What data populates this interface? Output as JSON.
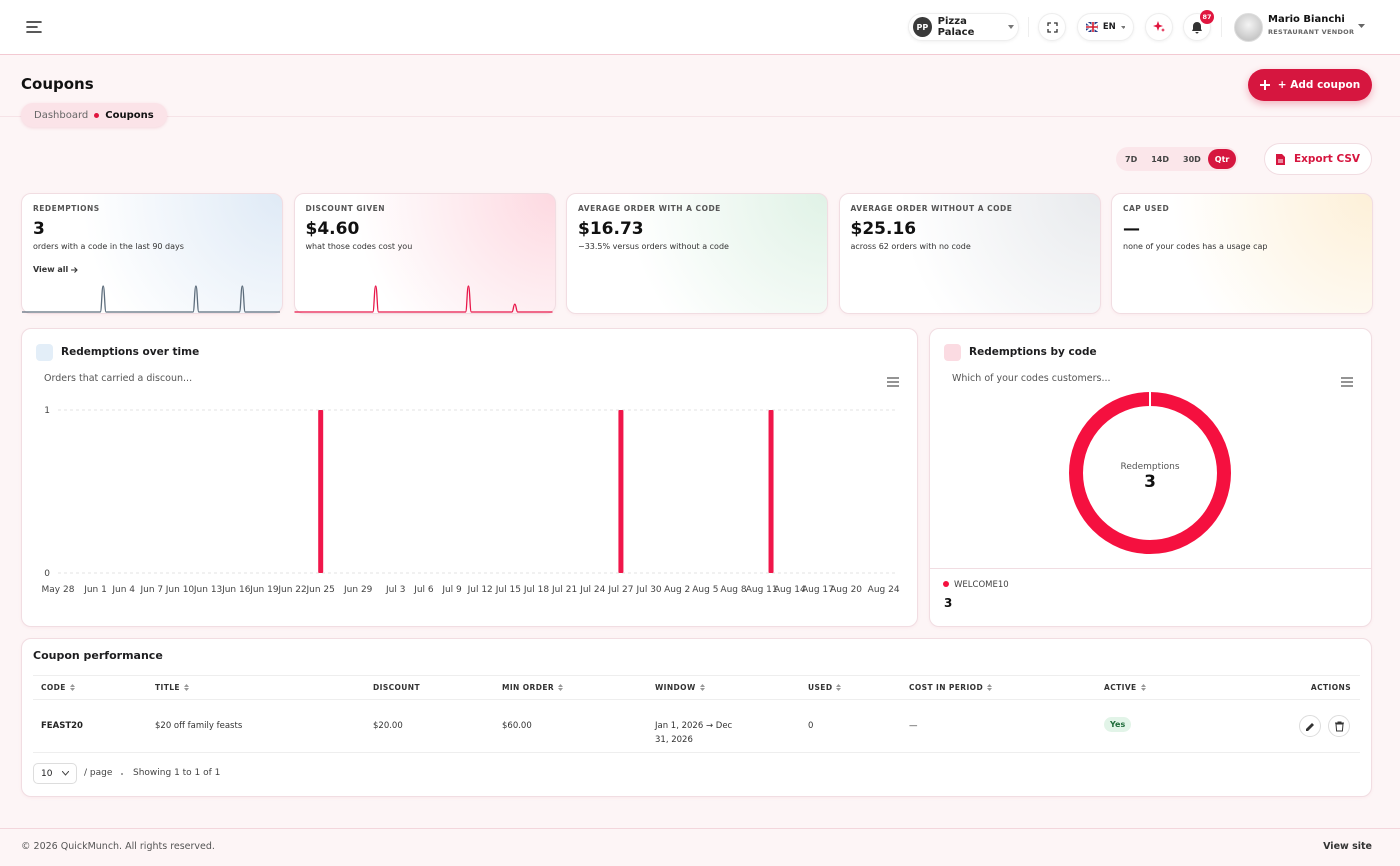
{
  "header": {
    "store_initials": "PP",
    "store": "Pizza Palace",
    "language": "EN",
    "notifications": 87,
    "user_name": "Mario Bianchi",
    "user_role": "RESTAURANT VENDOR"
  },
  "page": {
    "title": "Coupons",
    "add_button": "+ Add coupon",
    "breadcrumb": [
      "Dashboard",
      "Coupons"
    ]
  },
  "toolbar": {
    "ranges": [
      "7D",
      "14D",
      "30D",
      "Qtr"
    ],
    "active_range": 3,
    "export": "Export CSV"
  },
  "stats": [
    {
      "label": "REDEMPTIONS",
      "value": "3",
      "note": "orders with a code in the last 90 days",
      "link": "View all",
      "sparkline_color": "#5d6d7c",
      "sparkline": [
        0,
        0,
        0,
        0,
        0,
        0,
        0,
        0,
        0,
        0,
        0,
        0,
        0,
        0,
        0,
        0,
        0,
        0,
        0,
        0,
        0,
        0,
        0,
        0,
        0,
        0,
        0,
        0,
        1,
        0,
        0,
        0,
        0,
        0,
        0,
        0,
        0,
        0,
        0,
        0,
        0,
        0,
        0,
        0,
        0,
        0,
        0,
        0,
        0,
        0,
        0,
        0,
        0,
        0,
        0,
        0,
        0,
        0,
        0,
        0,
        1,
        0,
        0,
        0,
        0,
        0,
        0,
        0,
        0,
        0,
        0,
        0,
        0,
        0,
        0,
        0,
        1,
        0,
        0,
        0,
        0,
        0,
        0,
        0,
        0,
        0,
        0,
        0,
        0,
        0
      ]
    },
    {
      "label": "DISCOUNT GIVEN",
      "value": "$4.60",
      "note": "what those codes cost you",
      "sparkline_color": "#e8174a",
      "sparkline": [
        0,
        0,
        0,
        0,
        0,
        0,
        0,
        0,
        0,
        0,
        0,
        0,
        0,
        0,
        0,
        0,
        0,
        0,
        0,
        0,
        0,
        0,
        0,
        0,
        0,
        0,
        0,
        0,
        2,
        0,
        0,
        0,
        0,
        0,
        0,
        0,
        0,
        0,
        0,
        0,
        0,
        0,
        0,
        0,
        0,
        0,
        0,
        0,
        0,
        0,
        0,
        0,
        0,
        0,
        0,
        0,
        0,
        0,
        0,
        0,
        2,
        0,
        0,
        0,
        0,
        0,
        0,
        0,
        0,
        0,
        0,
        0,
        0,
        0,
        0,
        0,
        0.6,
        0,
        0,
        0,
        0,
        0,
        0,
        0,
        0,
        0,
        0,
        0,
        0,
        0
      ]
    },
    {
      "label": "AVERAGE ORDER WITH A CODE",
      "value": "$16.73",
      "note": "−33.5% versus orders without a code"
    },
    {
      "label": "AVERAGE ORDER WITHOUT A CODE",
      "value": "$25.16",
      "note": "across 62 orders with no code"
    },
    {
      "label": "CAP USED",
      "value": "—",
      "note": "none of your codes has a usage cap"
    }
  ],
  "chart_data": [
    {
      "type": "bar",
      "title": "Redemptions over time",
      "subtitle": "Orders that carried a discoun...",
      "categories": [
        "May 28",
        null,
        null,
        null,
        "Jun 1",
        null,
        null,
        "Jun 4",
        null,
        null,
        "Jun 7",
        null,
        null,
        "Jun 10",
        null,
        null,
        "Jun 13",
        null,
        null,
        "Jun 16",
        null,
        null,
        "Jun 19",
        null,
        null,
        "Jun 22",
        null,
        null,
        "Jun 25",
        null,
        null,
        null,
        "Jun 29",
        null,
        null,
        null,
        "Jul 3",
        null,
        null,
        "Jul 6",
        null,
        null,
        "Jul 9",
        null,
        null,
        "Jul 12",
        null,
        null,
        "Jul 15",
        null,
        null,
        "Jul 18",
        null,
        null,
        "Jul 21",
        null,
        null,
        "Jul 24",
        null,
        null,
        "Jul 27",
        null,
        null,
        "Jul 30",
        null,
        null,
        "Aug 2",
        null,
        null,
        "Aug 5",
        null,
        null,
        "Aug 8",
        null,
        null,
        "Aug 11",
        null,
        null,
        "Aug 14",
        null,
        null,
        "Aug 17",
        null,
        null,
        "Aug 20",
        null,
        null,
        null,
        "Aug 24",
        null
      ],
      "values": [
        0,
        0,
        0,
        0,
        0,
        0,
        0,
        0,
        0,
        0,
        0,
        0,
        0,
        0,
        0,
        0,
        0,
        0,
        0,
        0,
        0,
        0,
        0,
        0,
        0,
        0,
        0,
        0,
        1,
        0,
        0,
        0,
        0,
        0,
        0,
        0,
        0,
        0,
        0,
        0,
        0,
        0,
        0,
        0,
        0,
        0,
        0,
        0,
        0,
        0,
        0,
        0,
        0,
        0,
        0,
        0,
        0,
        0,
        0,
        0,
        1,
        0,
        0,
        0,
        0,
        0,
        0,
        0,
        0,
        0,
        0,
        0,
        0,
        0,
        0,
        0,
        1,
        0,
        0,
        0,
        0,
        0,
        0,
        0,
        0,
        0,
        0,
        0,
        0,
        0
      ],
      "color": "#f0164a",
      "ylim": [
        0,
        1
      ],
      "yticks": [
        0,
        1
      ],
      "grid": true
    },
    {
      "type": "donut",
      "title": "Redemptions by code",
      "subtitle": "Which of your codes customers...",
      "center_label": "Redemptions",
      "total": 3,
      "categories": [
        "WELCOME10"
      ],
      "values": [
        3
      ],
      "colors": [
        "#f5103f"
      ]
    }
  ],
  "table": {
    "title": "Coupon performance",
    "columns": [
      {
        "label": "CODE",
        "sortable": true
      },
      {
        "label": "TITLE",
        "sortable": true
      },
      {
        "label": "DISCOUNT",
        "sortable": false
      },
      {
        "label": "MIN ORDER",
        "sortable": true
      },
      {
        "label": "WINDOW",
        "sortable": true
      },
      {
        "label": "USED",
        "sortable": true
      },
      {
        "label": "COST IN PERIOD",
        "sortable": true
      },
      {
        "label": "ACTIVE",
        "sortable": true
      },
      {
        "label": "ACTIONS",
        "sortable": false
      }
    ],
    "rows": [
      [
        "FEAST20",
        "$20 off family feasts",
        "$20.00",
        "$60.00",
        "Jan 1, 2026 → Dec 31, 2026",
        "0",
        "—",
        "Yes"
      ]
    ],
    "page_size": "10",
    "page_size_suffix": "/ page",
    "summary": "Showing 1 to 1 of 1"
  },
  "footer": {
    "copyright": "© 2026 QuickMunch. All rights reserved.",
    "link": "View site"
  }
}
